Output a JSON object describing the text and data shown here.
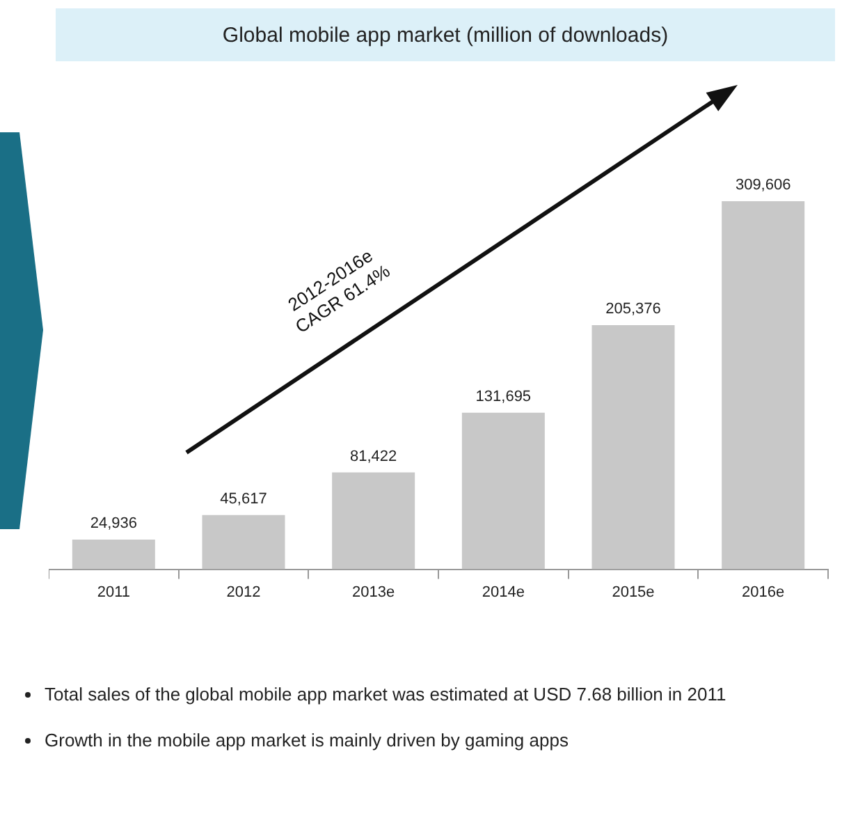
{
  "chart_data": {
    "type": "bar",
    "title": "Global mobile app market (million of downloads)",
    "categories": [
      "2011",
      "2012",
      "2013e",
      "2014e",
      "2015e",
      "2016e"
    ],
    "values": [
      24936,
      45617,
      81422,
      131695,
      205376,
      309606
    ],
    "color": "#c8c8c8",
    "value_labels": [
      "24,936",
      "45,617",
      "81,422",
      "131,695",
      "205,376",
      "309,606"
    ],
    "annotations": [
      "2012-2016e\nCAGR 61.4%",
      "Total sales of the global mobile app market was estimated at USD 7.68 billion in 2011",
      "Growth in the mobile app market is mainly driven by gaming apps"
    ]
  }
}
